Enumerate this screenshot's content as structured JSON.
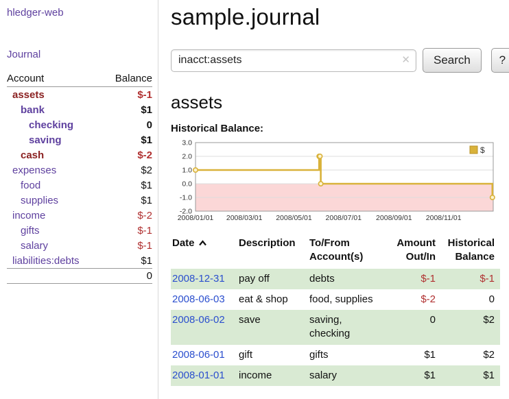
{
  "colors": {
    "purple": "#5f419f",
    "maroon": "#8b2222",
    "negative_red": "#b03030",
    "link_blue": "#2b4fce",
    "row_green": "#d9ead3",
    "chart_line": "#d9b23a",
    "chart_negative_fill": "#fbd7d7"
  },
  "icons": {
    "clear": "✕",
    "sort": "chevron-up"
  },
  "page": {
    "title": "sample.journal"
  },
  "sidebar": {
    "app_title": "hledger-web",
    "journal_link": "Journal",
    "table_headers": {
      "account": "Account",
      "balance": "Balance"
    },
    "accounts": [
      {
        "name": "assets",
        "indent": 0,
        "bold": true,
        "name_color": "maroon",
        "balance": "$-1",
        "negative": true
      },
      {
        "name": "bank",
        "indent": 1,
        "bold": true,
        "name_color": "purple",
        "balance": "$1",
        "negative": false
      },
      {
        "name": "checking",
        "indent": 2,
        "bold": true,
        "name_color": "purple",
        "balance": "0",
        "negative": false
      },
      {
        "name": "saving",
        "indent": 2,
        "bold": true,
        "name_color": "purple",
        "balance": "$1",
        "negative": false
      },
      {
        "name": "cash",
        "indent": 1,
        "bold": true,
        "name_color": "maroon",
        "balance": "$-2",
        "negative": true
      },
      {
        "name": "expenses",
        "indent": 0,
        "bold": false,
        "name_color": "purple",
        "balance": "$2",
        "negative": false
      },
      {
        "name": "food",
        "indent": 1,
        "bold": false,
        "name_color": "purple",
        "balance": "$1",
        "negative": false
      },
      {
        "name": "supplies",
        "indent": 1,
        "bold": false,
        "name_color": "purple",
        "balance": "$1",
        "negative": false
      },
      {
        "name": "income",
        "indent": 0,
        "bold": false,
        "name_color": "purple",
        "balance": "$-2",
        "negative": true
      },
      {
        "name": "gifts",
        "indent": 1,
        "bold": false,
        "name_color": "purple",
        "balance": "$-1",
        "negative": true
      },
      {
        "name": "salary",
        "indent": 1,
        "bold": false,
        "name_color": "purple",
        "balance": "$-1",
        "negative": true
      },
      {
        "name": "liabilities:debts",
        "indent": 0,
        "bold": false,
        "name_color": "purple",
        "balance": "$1",
        "negative": false
      }
    ],
    "total": "0"
  },
  "search": {
    "value": "inacct:assets",
    "search_button": "Search",
    "help_button": "?"
  },
  "register": {
    "heading": "assets",
    "chart_title": "Historical Balance:",
    "table": {
      "headers": [
        "Date",
        "Description",
        "To/From Account(s)",
        "Amount Out/In",
        "Historical Balance"
      ],
      "rows": [
        {
          "date": "2008-12-31",
          "description": "pay off",
          "accounts": "debts",
          "amount": "$-1",
          "amount_negative": true,
          "balance": "$-1",
          "balance_negative": true,
          "shaded": true
        },
        {
          "date": "2008-06-03",
          "description": "eat & shop",
          "accounts": "food, supplies",
          "amount": "$-2",
          "amount_negative": true,
          "balance": "0",
          "balance_negative": false,
          "shaded": false
        },
        {
          "date": "2008-06-02",
          "description": "save",
          "accounts": "saving, checking",
          "amount": "0",
          "amount_negative": false,
          "balance": "$2",
          "balance_negative": false,
          "shaded": true
        },
        {
          "date": "2008-06-01",
          "description": "gift",
          "accounts": "gifts",
          "amount": "$1",
          "amount_negative": false,
          "balance": "$2",
          "balance_negative": false,
          "shaded": false
        },
        {
          "date": "2008-01-01",
          "description": "income",
          "accounts": "salary",
          "amount": "$1",
          "amount_negative": false,
          "balance": "$1",
          "balance_negative": false,
          "shaded": true
        }
      ]
    }
  },
  "chart_data": {
    "type": "line",
    "step": true,
    "title": "Historical Balance",
    "series": [
      {
        "name": "$",
        "points": [
          [
            "2008-01-01",
            1
          ],
          [
            "2008-06-01",
            2
          ],
          [
            "2008-06-02",
            2
          ],
          [
            "2008-06-03",
            0
          ],
          [
            "2008-12-31",
            -1
          ]
        ]
      }
    ],
    "ylim": [
      -2.0,
      3.0
    ],
    "yticks": [
      3.0,
      2.0,
      1.0,
      0.0,
      -1.0,
      -2.0
    ],
    "xticks": [
      "2008/01/01",
      "2008/03/01",
      "2008/05/01",
      "2008/07/01",
      "2008/09/01",
      "2008/11/01"
    ],
    "x_domain": [
      "2008-01-01",
      "2009-01-01"
    ],
    "legend_position": "top-right",
    "grid": true,
    "negative_region_fill": "#fbd7d7"
  }
}
